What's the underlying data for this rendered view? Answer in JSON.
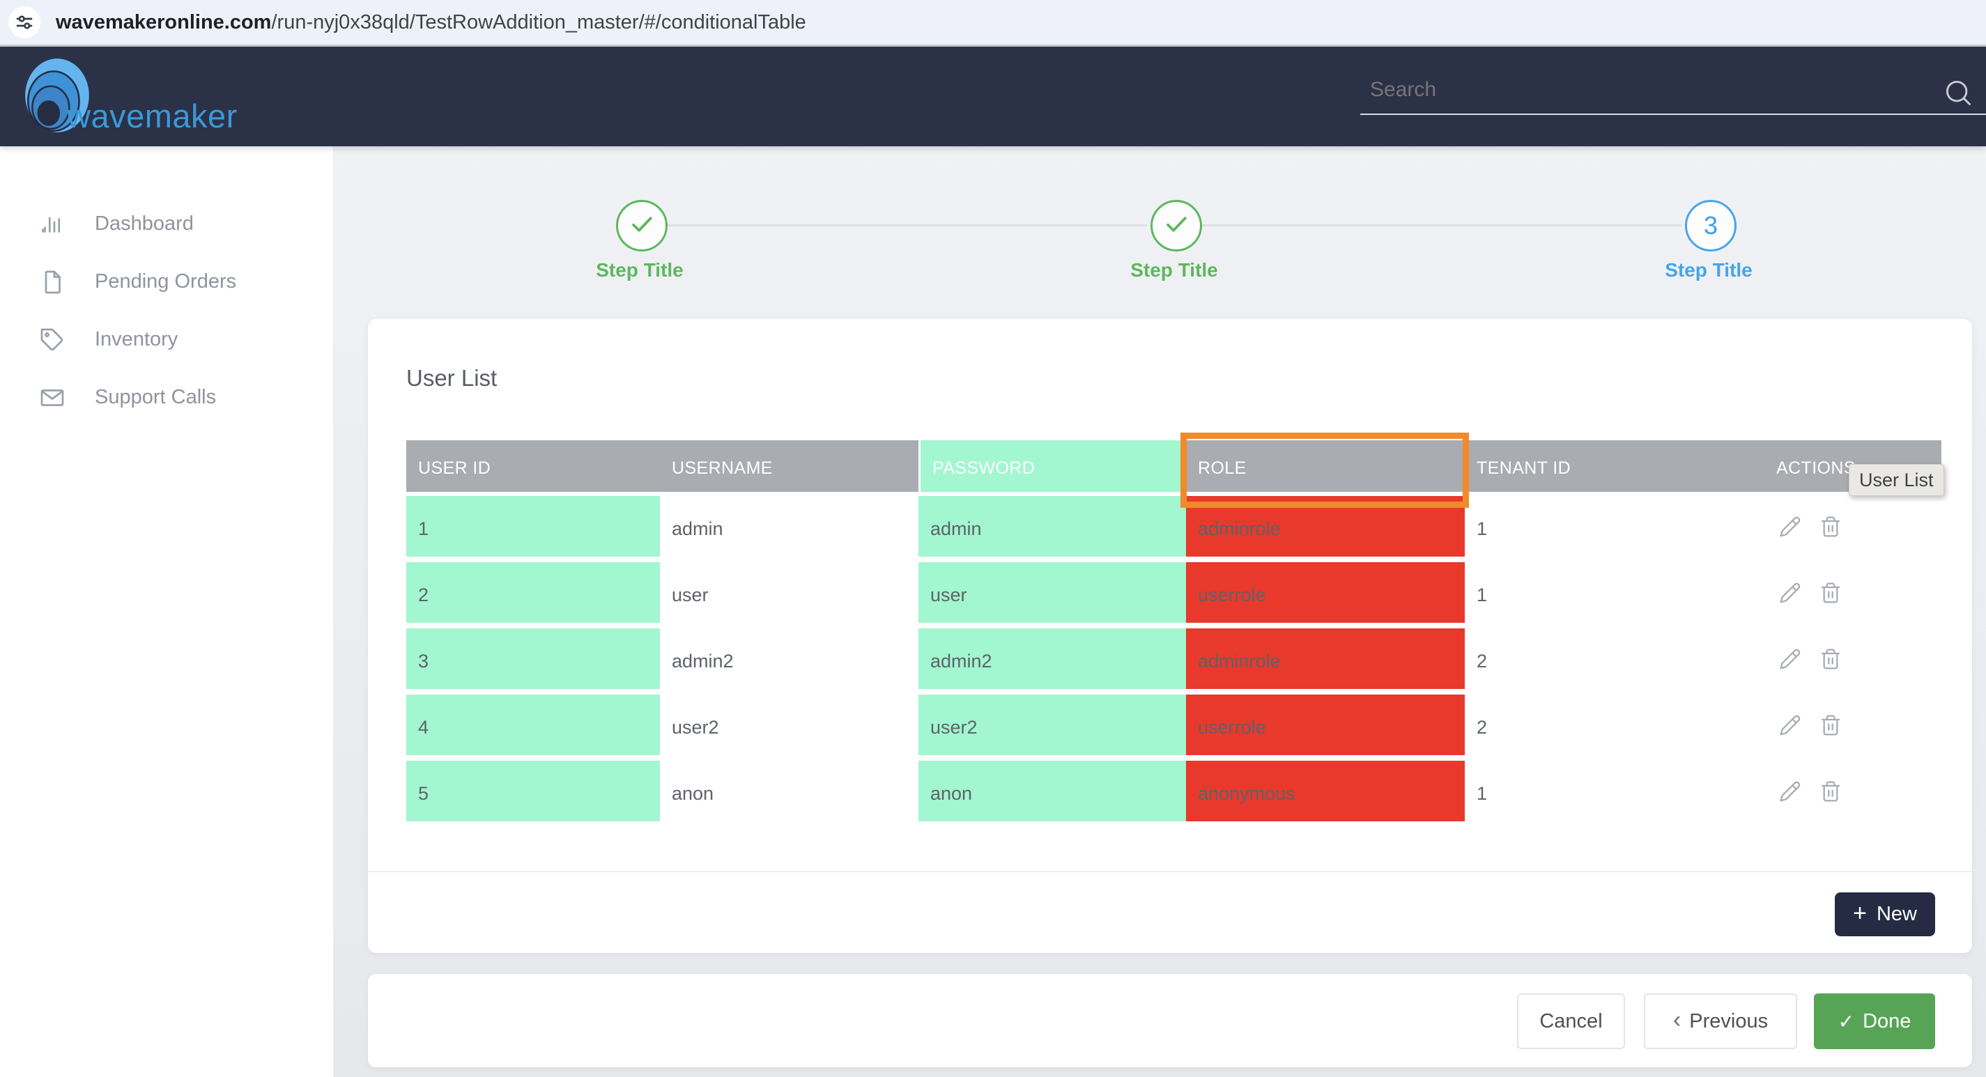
{
  "browser": {
    "url_domain": "wavemakeronline.com",
    "url_path": "/run-nyj0x38qld/TestRowAddition_master/#/conditionalTable"
  },
  "navbar": {
    "brand": "wavemaker",
    "search_placeholder": "Search"
  },
  "sidebar": {
    "items": [
      {
        "label": "Dashboard",
        "icon": "bar-chart-icon"
      },
      {
        "label": "Pending Orders",
        "icon": "document-icon"
      },
      {
        "label": "Inventory",
        "icon": "tag-icon"
      },
      {
        "label": "Support Calls",
        "icon": "envelope-icon"
      }
    ]
  },
  "stepper": {
    "steps": [
      {
        "label": "Step Title",
        "state": "done"
      },
      {
        "label": "Step Title",
        "state": "done"
      },
      {
        "label": "Step Title",
        "state": "active",
        "number": "3"
      }
    ]
  },
  "panel": {
    "title": "User List"
  },
  "table": {
    "columns": [
      "USER ID",
      "USERNAME",
      "PASSWORD",
      "ROLE",
      "TENANT ID",
      "ACTIONS"
    ],
    "rows": [
      {
        "user_id": "1",
        "username": "admin",
        "password": "admin",
        "role": "adminrole",
        "tenant_id": "1"
      },
      {
        "user_id": "2",
        "username": "user",
        "password": "user",
        "role": "userrole",
        "tenant_id": "1"
      },
      {
        "user_id": "3",
        "username": "admin2",
        "password": "admin2",
        "role": "adminrole",
        "tenant_id": "2"
      },
      {
        "user_id": "4",
        "username": "user2",
        "password": "user2",
        "role": "userrole",
        "tenant_id": "2"
      },
      {
        "user_id": "5",
        "username": "anon",
        "password": "anon",
        "role": "anonymous",
        "tenant_id": "1"
      }
    ],
    "row_action_icons": [
      "pencil-icon",
      "trash-icon"
    ]
  },
  "tooltip": {
    "text": "User List"
  },
  "buttons": {
    "new": "New",
    "cancel": "Cancel",
    "previous": "Previous",
    "done": "Done"
  },
  "colors": {
    "navbar": "#2b3147",
    "mint": "#a2f6d0",
    "red": "#e8392c",
    "header_grey": "#a9acb1",
    "highlight_orange": "#f18a2c",
    "step_green": "#5cb85c",
    "step_blue": "#49a6e7",
    "done_green": "#57a457",
    "new_navy": "#252b42"
  }
}
